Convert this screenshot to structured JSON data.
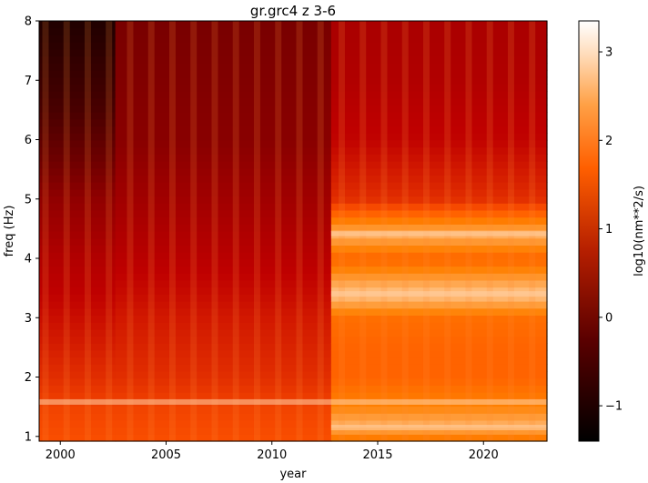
{
  "chart_data": {
    "type": "heatmap",
    "title": "gr.grc4 z 3-6",
    "xlabel": "year",
    "ylabel": "freq (Hz)",
    "xlim": [
      1999.0,
      2023.0
    ],
    "ylim": [
      0.92,
      8.0
    ],
    "x_ticks": [
      2000,
      2005,
      2010,
      2015,
      2020
    ],
    "x_tick_labels": [
      "2000",
      "2005",
      "2010",
      "2015",
      "2020"
    ],
    "y_ticks": [
      1,
      2,
      3,
      4,
      5,
      6,
      7,
      8
    ],
    "y_tick_labels": [
      "1",
      "2",
      "3",
      "4",
      "5",
      "6",
      "7",
      "8"
    ],
    "colorbar": {
      "label": "log10(nm**2/s)",
      "range": [
        -1.4,
        3.35
      ],
      "ticks": [
        -1,
        0,
        1,
        2,
        3
      ],
      "tick_labels": [
        "−1",
        "0",
        "1",
        "2",
        "3"
      ],
      "colormap": "gist_heat"
    },
    "regimes": [
      {
        "x_range": [
          1999.0,
          2002.6
        ],
        "level_by_freq": [
          [
            0.92,
            1.7
          ],
          [
            1.5,
            1.6
          ],
          [
            2.0,
            1.4
          ],
          [
            3.0,
            1.1
          ],
          [
            4.0,
            0.8
          ],
          [
            5.0,
            0.4
          ],
          [
            5.6,
            0.0
          ],
          [
            6.5,
            -0.5
          ],
          [
            8.0,
            -1.0
          ]
        ]
      },
      {
        "x_range": [
          2002.6,
          2012.8
        ],
        "level_by_freq": [
          [
            0.92,
            1.7
          ],
          [
            1.5,
            1.6
          ],
          [
            2.0,
            1.4
          ],
          [
            3.0,
            1.2
          ],
          [
            4.0,
            0.9
          ],
          [
            5.0,
            0.6
          ],
          [
            6.0,
            0.3
          ],
          [
            7.0,
            0.2
          ],
          [
            8.0,
            0.1
          ]
        ]
      },
      {
        "x_range": [
          2012.8,
          2023.0
        ],
        "level_by_freq": [
          [
            0.92,
            2.0
          ],
          [
            1.2,
            2.6
          ],
          [
            1.5,
            2.2
          ],
          [
            2.0,
            1.9
          ],
          [
            2.5,
            1.9
          ],
          [
            3.0,
            2.0
          ],
          [
            3.4,
            2.8
          ],
          [
            4.0,
            1.9
          ],
          [
            4.4,
            2.6
          ],
          [
            5.0,
            1.4
          ],
          [
            6.0,
            1.0
          ],
          [
            7.0,
            0.8
          ],
          [
            8.0,
            0.7
          ]
        ]
      }
    ],
    "bright_bands_hz": [
      1.15,
      1.58,
      3.4,
      4.42
    ]
  }
}
